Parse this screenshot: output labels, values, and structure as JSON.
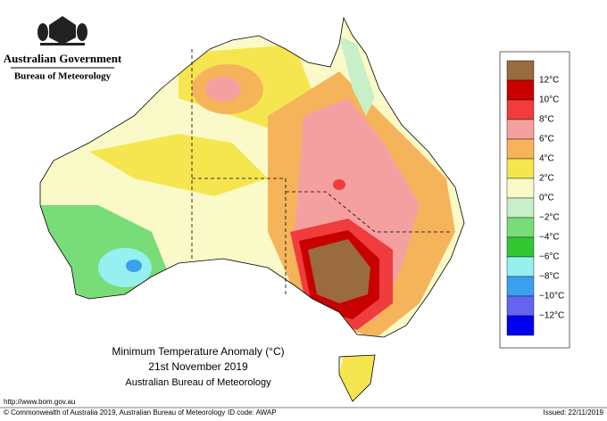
{
  "header": {
    "government": "Australian Government",
    "agency": "Bureau of Meteorology"
  },
  "map": {
    "title": "Minimum Temperature Anomaly (°C)",
    "date": "21st November 2019",
    "source": "Australian Bureau of Meteorology"
  },
  "legend": {
    "colors": [
      "#9a6b3e",
      "#c80000",
      "#f03c3c",
      "#f5a0a0",
      "#f5b45a",
      "#f5e650",
      "#fafac8",
      "#c8f0c8",
      "#78dc78",
      "#32c832",
      "#96f0f0",
      "#3ca0f0",
      "#6464f0",
      "#0000f0"
    ],
    "labels": [
      "12°C",
      "10°C",
      "8°C",
      "6°C",
      "4°C",
      "2°C",
      "0°C",
      "−2°C",
      "−4°C",
      "−6°C",
      "−8°C",
      "−10°C",
      "−12°C"
    ]
  },
  "footer": {
    "url": "http://www.bom.gov.au",
    "copyright": "© Commonwealth of Australia 2019, Australian Bureau of Meteorology",
    "id_code": "ID code: AWAP",
    "issued": "Issued: 22/11/2019"
  }
}
